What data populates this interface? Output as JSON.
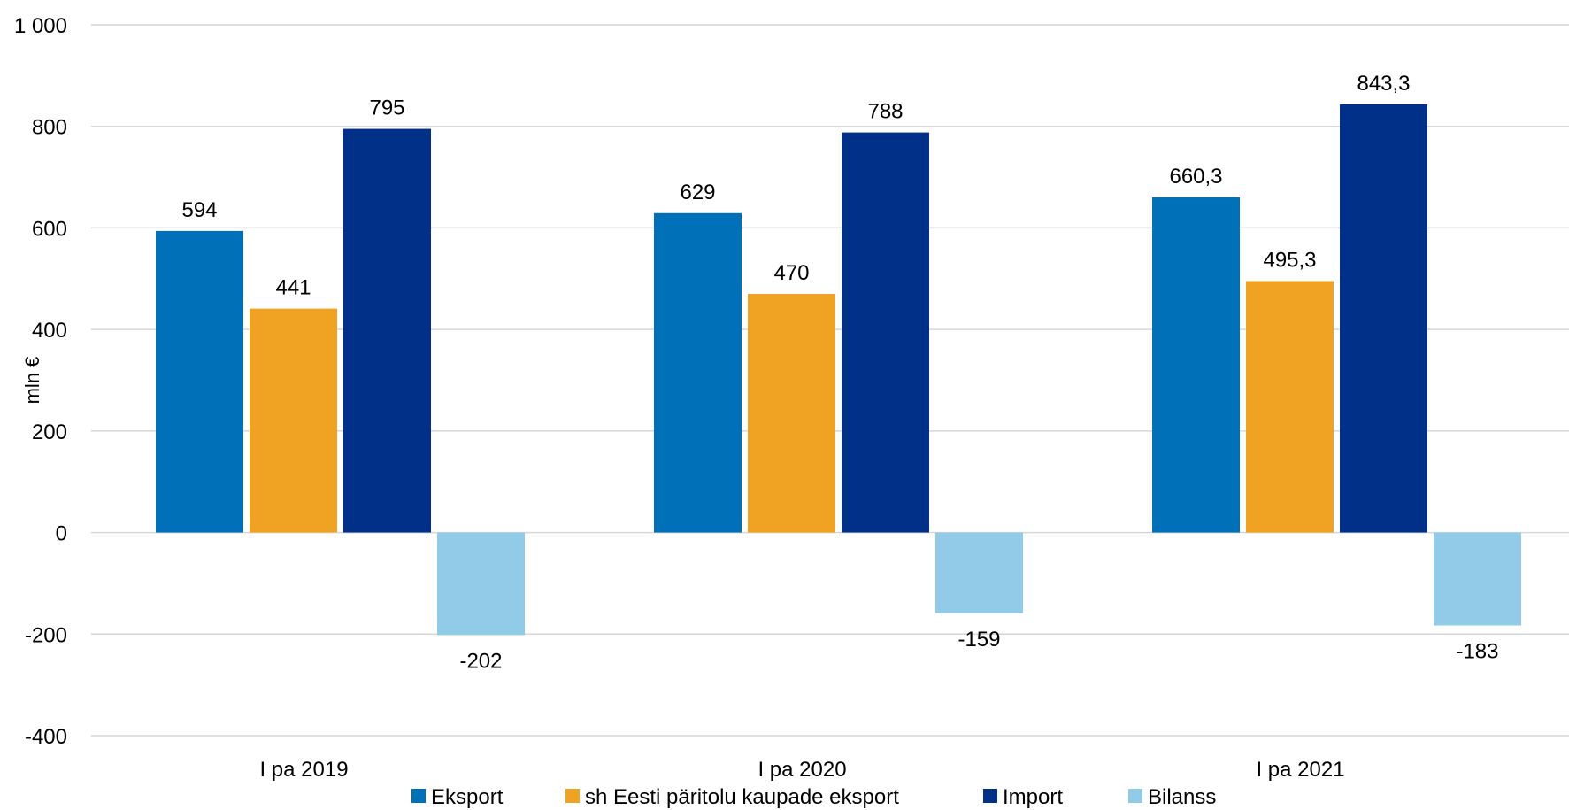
{
  "chart_data": {
    "type": "bar",
    "title": "",
    "xlabel": "",
    "ylabel": "mln €",
    "ylim": [
      -400,
      1000
    ],
    "yticks": [
      {
        "value": 1000,
        "label": "1 000"
      },
      {
        "value": 800,
        "label": "800"
      },
      {
        "value": 600,
        "label": "600"
      },
      {
        "value": 400,
        "label": "400"
      },
      {
        "value": 200,
        "label": "200"
      },
      {
        "value": 0,
        "label": "0"
      },
      {
        "value": -200,
        "label": "-200"
      },
      {
        "value": -400,
        "label": "-400"
      }
    ],
    "grid": true,
    "legend_position": "bottom",
    "categories": [
      "I pa 2019",
      "I pa 2020",
      "I pa 2021"
    ],
    "series": [
      {
        "name": "Eksport",
        "color": "#0070b8",
        "values": [
          594,
          629,
          660.3
        ],
        "labels": [
          "594",
          "629",
          "660,3"
        ]
      },
      {
        "name": "sh Eesti päritolu kaupade eksport",
        "color": "#f0a323",
        "values": [
          441,
          470,
          495.3
        ],
        "labels": [
          "441",
          "470",
          "495,3"
        ]
      },
      {
        "name": "Import",
        "color": "#003087",
        "values": [
          795,
          788,
          843.3
        ],
        "labels": [
          "795",
          "788",
          "843,3"
        ]
      },
      {
        "name": "Bilanss",
        "color": "#92cbe8",
        "values": [
          -202,
          -159,
          -183
        ],
        "labels": [
          "-202",
          "-159",
          "-183"
        ]
      }
    ]
  }
}
